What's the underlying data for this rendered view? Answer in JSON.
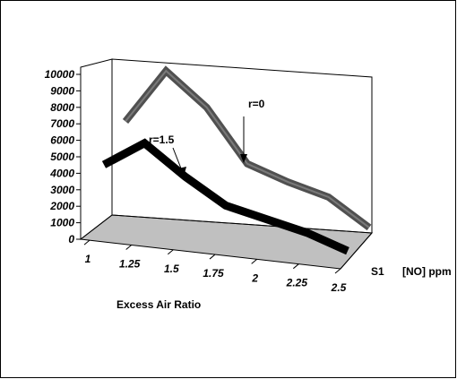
{
  "chart_data": {
    "type": "line",
    "view": "3d",
    "categories": [
      "1",
      "1.25",
      "1.5",
      "1.75",
      "2",
      "2.25",
      "2.5"
    ],
    "x": [
      1,
      1.25,
      1.5,
      1.75,
      2,
      2.25,
      2.5
    ],
    "series": [
      {
        "name": "r=0",
        "values": [
          5600,
          9300,
          7300,
          4000,
          3200,
          2600,
          1000
        ],
        "color": "#505050"
      },
      {
        "name": "r=1.5",
        "values": [
          3000,
          4800,
          3000,
          1500,
          1000,
          500,
          -300
        ],
        "color": "#000000"
      }
    ],
    "y_ticks": [
      "10000",
      "9000",
      "8000",
      "7000",
      "6000",
      "5000",
      "4000",
      "3000",
      "2000",
      "1000",
      "0"
    ],
    "ylim": [
      0,
      10000
    ],
    "xlabel": "Excess Air Ratio",
    "depth_label": "S1",
    "zlabel": "[NO] ppm",
    "floor_color": "#c0c0c0",
    "annotations": [
      {
        "text": "r=0",
        "series": 0
      },
      {
        "text": "r=1.5",
        "series": 1
      }
    ]
  }
}
